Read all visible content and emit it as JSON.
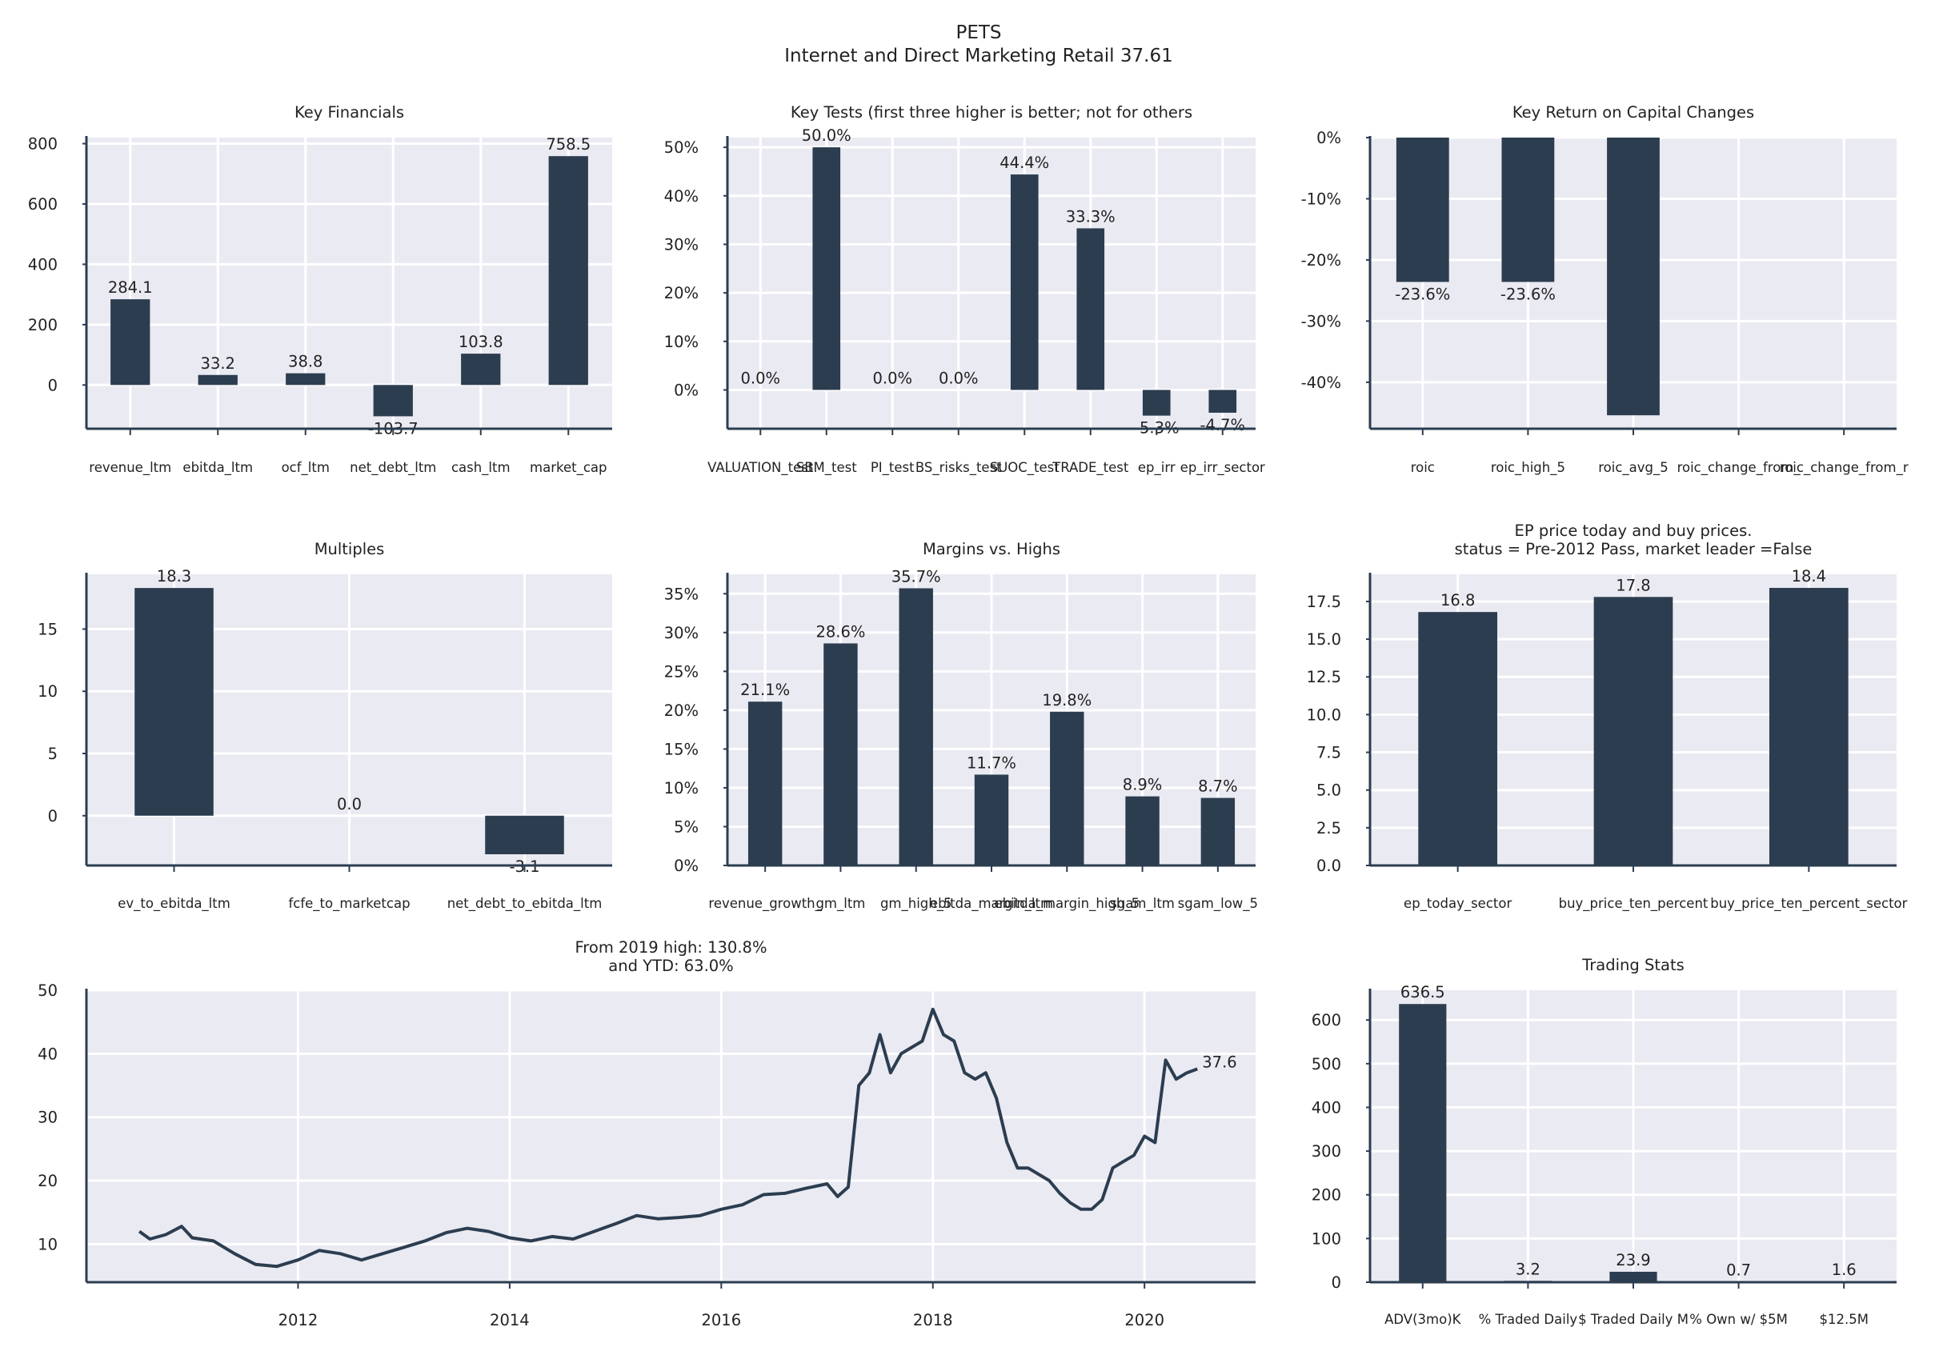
{
  "figure": {
    "title_line1": "PETS",
    "title_line2": "Internet and Direct Marketing Retail 37.61"
  },
  "colors": {
    "bar": "#2c3d50",
    "panel_bg": "#eaeaf2",
    "grid": "#ffffff",
    "axis": "#2c3d50",
    "text": "#222222"
  },
  "chart_data": [
    {
      "id": "key_financials",
      "type": "bar",
      "title": "Key Financials",
      "categories": [
        "revenue_ltm",
        "ebitda_ltm",
        "ocf_ltm",
        "net_debt_ltm",
        "cash_ltm",
        "market_cap"
      ],
      "values": [
        284.1,
        33.2,
        38.8,
        -103.7,
        103.8,
        758.5
      ],
      "value_labels": [
        "284.1",
        "33.2",
        "38.8",
        "-103.7",
        "103.8",
        "758.5"
      ],
      "ylim": [
        -145,
        820
      ],
      "yticks": [
        0,
        200,
        400,
        600,
        800
      ],
      "ytick_labels": [
        "0",
        "200",
        "400",
        "600",
        "800"
      ],
      "grid": true
    },
    {
      "id": "key_tests",
      "type": "bar",
      "title": "Key Tests (first three higher is better; not for others",
      "categories": [
        "VALUATION_test",
        "SBM_test",
        "PI_test",
        "BS_risks_test",
        "SUOC_test",
        "TRADE_test",
        "ep_irr",
        "ep_irr_sector"
      ],
      "values": [
        0.0,
        50.0,
        0.0,
        0.0,
        44.4,
        33.3,
        -5.3,
        -4.7
      ],
      "value_labels": [
        "0.0%",
        "50.0%",
        "0.0%",
        "0.0%",
        "44.4%",
        "33.3%",
        "-5.3%",
        "-4.7%"
      ],
      "ylim": [
        -8,
        52
      ],
      "yticks": [
        0,
        10,
        20,
        30,
        40,
        50
      ],
      "ytick_labels": [
        "0%",
        "10%",
        "20%",
        "30%",
        "40%",
        "50%"
      ],
      "grid": true
    },
    {
      "id": "roic_changes",
      "type": "bar",
      "title": "Key Return on Capital Changes",
      "categories": [
        "roic",
        "roic_high_5",
        "roic_avg_5",
        "roic_change_from_",
        "roic_change_from_r"
      ],
      "values": [
        -23.6,
        -23.6,
        -45.4,
        null,
        null
      ],
      "value_labels": [
        "-23.6%",
        "-23.6%",
        "",
        "",
        ""
      ],
      "ylim": [
        -47.6,
        0
      ],
      "yticks": [
        0,
        -10,
        -20,
        -30,
        -40
      ],
      "ytick_labels": [
        "0%",
        "-10%",
        "-20%",
        "-30%",
        "-40%"
      ],
      "grid": true
    },
    {
      "id": "multiples",
      "type": "bar",
      "title": "Multiples",
      "categories": [
        "ev_to_ebitda_ltm",
        "fcfe_to_marketcap",
        "net_debt_to_ebitda_ltm"
      ],
      "values": [
        18.3,
        0.0,
        -3.1
      ],
      "value_labels": [
        "18.3",
        "0.0",
        "-3.1"
      ],
      "ylim": [
        -4,
        19.4
      ],
      "yticks": [
        0,
        5,
        10,
        15
      ],
      "ytick_labels": [
        "0",
        "5",
        "10",
        "15"
      ],
      "grid": true
    },
    {
      "id": "margins",
      "type": "bar",
      "title": "Margins vs. Highs",
      "categories": [
        "revenue_growth_",
        "gm_ltm",
        "gm_high_5",
        "ebitda_margin_ltm",
        "ebitda_margin_high_5",
        "sgam_ltm",
        "sgam_low_5"
      ],
      "values": [
        21.1,
        28.6,
        35.7,
        11.7,
        19.8,
        8.9,
        8.7
      ],
      "value_labels": [
        "21.1%",
        "28.6%",
        "35.7%",
        "11.7%",
        "19.8%",
        "8.9%",
        "8.7%"
      ],
      "ylim": [
        0,
        37.5
      ],
      "yticks": [
        0,
        5,
        10,
        15,
        20,
        25,
        30,
        35
      ],
      "ytick_labels": [
        "0%",
        "5%",
        "10%",
        "15%",
        "20%",
        "25%",
        "30%",
        "35%"
      ],
      "grid": true
    },
    {
      "id": "ep_price",
      "type": "bar",
      "title": "EP price today and buy prices.",
      "subtitle": "status = Pre-2012 Pass, market leader =False",
      "categories": [
        "ep_today_sector",
        "buy_price_ten_percent",
        "buy_price_ten_percent_sector"
      ],
      "values": [
        16.8,
        17.8,
        18.4
      ],
      "value_labels": [
        "16.8",
        "17.8",
        "18.4"
      ],
      "ylim": [
        0,
        19.3
      ],
      "yticks": [
        0,
        2.5,
        5,
        7.5,
        10,
        12.5,
        15,
        17.5
      ],
      "ytick_labels": [
        "0.0",
        "2.5",
        "5.0",
        "7.5",
        "10.0",
        "12.5",
        "15.0",
        "17.5"
      ],
      "grid": true
    },
    {
      "id": "price_history",
      "type": "line",
      "title": "From 2019 high: 130.8%",
      "subtitle": "and YTD: 63.0%",
      "xlim": [
        2010.0,
        2021.05
      ],
      "ylim": [
        4,
        50
      ],
      "xticks": [
        2012,
        2014,
        2016,
        2018,
        2020
      ],
      "xtick_labels": [
        "2012",
        "2014",
        "2016",
        "2018",
        "2020"
      ],
      "yticks": [
        10,
        20,
        30,
        40,
        50
      ],
      "ytick_labels": [
        "10",
        "20",
        "30",
        "40",
        "50"
      ],
      "end_label": "37.6",
      "x": [
        2010.5,
        2010.6,
        2010.75,
        2010.9,
        2011.0,
        2011.2,
        2011.4,
        2011.6,
        2011.8,
        2012.0,
        2012.2,
        2012.4,
        2012.6,
        2012.8,
        2013.0,
        2013.2,
        2013.4,
        2013.6,
        2013.8,
        2014.0,
        2014.2,
        2014.4,
        2014.6,
        2014.8,
        2015.0,
        2015.2,
        2015.4,
        2015.6,
        2015.8,
        2016.0,
        2016.2,
        2016.4,
        2016.6,
        2016.8,
        2017.0,
        2017.1,
        2017.2,
        2017.3,
        2017.4,
        2017.5,
        2017.6,
        2017.7,
        2017.8,
        2017.9,
        2018.0,
        2018.1,
        2018.2,
        2018.3,
        2018.4,
        2018.5,
        2018.6,
        2018.7,
        2018.8,
        2018.9,
        2019.0,
        2019.1,
        2019.2,
        2019.3,
        2019.4,
        2019.5,
        2019.6,
        2019.7,
        2019.8,
        2019.9,
        2020.0,
        2020.1,
        2020.2,
        2020.3,
        2020.4,
        2020.5
      ],
      "y": [
        12,
        10.8,
        11.5,
        12.8,
        11,
        10.5,
        8.5,
        6.8,
        6.5,
        7.5,
        9,
        8.5,
        7.5,
        8.5,
        9.5,
        10.5,
        11.8,
        12.5,
        12,
        11,
        10.5,
        11.2,
        10.8,
        12,
        13.2,
        14.5,
        14,
        14.2,
        14.5,
        15.5,
        16.2,
        17.8,
        18,
        18.8,
        19.5,
        17.5,
        19,
        35,
        37,
        43,
        37,
        40,
        41,
        42,
        47,
        43,
        42,
        37,
        36,
        37,
        33,
        26,
        22,
        22,
        21,
        20,
        18,
        16.5,
        15.5,
        15.5,
        17,
        22,
        23,
        24,
        27,
        26,
        39,
        36,
        37,
        37.6
      ]
    },
    {
      "id": "trading_stats",
      "type": "bar",
      "title": "Trading Stats",
      "categories": [
        "ADV(3mo)K",
        "% Traded Daily",
        "$ Traded Daily M",
        "% Own w/ $5M",
        "$12.5M"
      ],
      "values": [
        636.5,
        3.2,
        23.9,
        0.7,
        1.6
      ],
      "value_labels": [
        "636.5",
        "3.2",
        "23.9",
        "0.7",
        "1.6"
      ],
      "ylim": [
        0,
        668
      ],
      "yticks": [
        0,
        100,
        200,
        300,
        400,
        500,
        600
      ],
      "ytick_labels": [
        "0",
        "100",
        "200",
        "300",
        "400",
        "500",
        "600"
      ],
      "grid": true
    }
  ]
}
